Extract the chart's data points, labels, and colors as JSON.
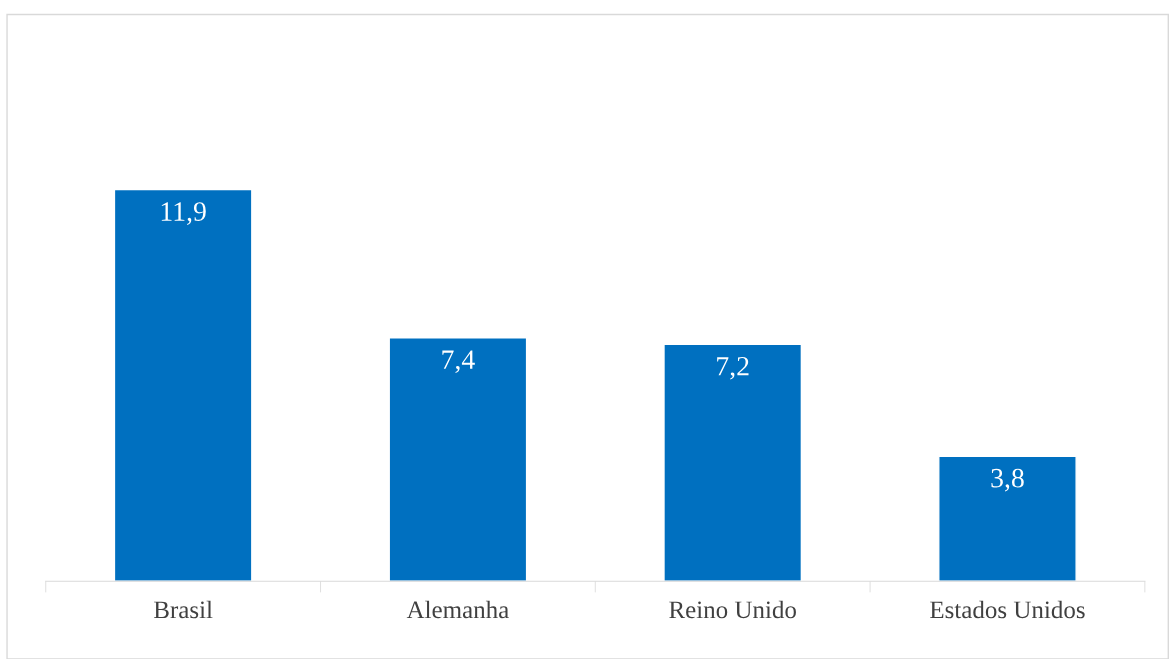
{
  "chart_data": {
    "type": "bar",
    "categories": [
      "Brasil",
      "Alemanha",
      "Reino Unido",
      "Estados Unidos"
    ],
    "values": [
      11.9,
      7.4,
      7.2,
      3.8
    ],
    "value_labels": [
      "11,9",
      "7,4",
      "7,2",
      "3,8"
    ],
    "color": "#0070c0",
    "grid": false,
    "legend": false
  }
}
